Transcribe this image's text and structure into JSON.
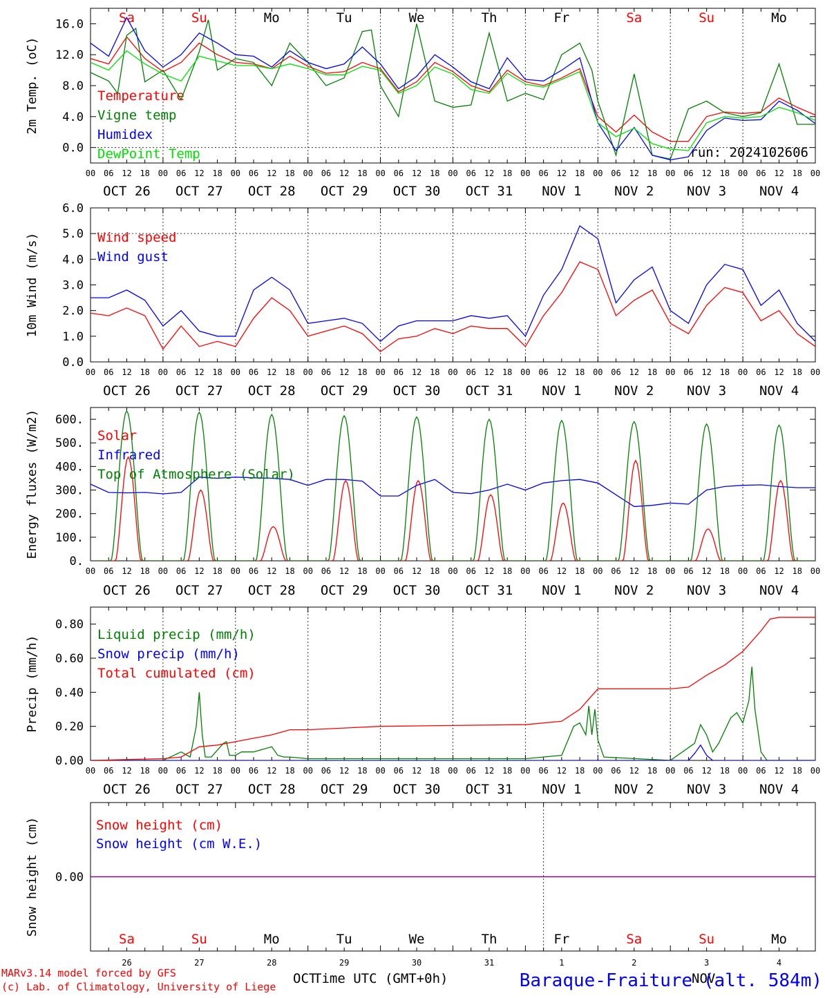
{
  "days": [
    {
      "dow": "Sa",
      "weekend": true,
      "date_label": "OCT 26",
      "dnum": "26"
    },
    {
      "dow": "Su",
      "weekend": true,
      "date_label": "OCT 27",
      "dnum": "27"
    },
    {
      "dow": "Mo",
      "weekend": false,
      "date_label": "OCT 28",
      "dnum": "28"
    },
    {
      "dow": "Tu",
      "weekend": false,
      "date_label": "OCT 29",
      "dnum": "29"
    },
    {
      "dow": "We",
      "weekend": false,
      "date_label": "OCT 30",
      "dnum": "30"
    },
    {
      "dow": "Th",
      "weekend": false,
      "date_label": "OCT 31",
      "dnum": "31"
    },
    {
      "dow": "Fr",
      "weekend": false,
      "date_label": "NOV  1",
      "dnum": "1"
    },
    {
      "dow": "Sa",
      "weekend": true,
      "date_label": "NOV  2",
      "dnum": "2"
    },
    {
      "dow": "Su",
      "weekend": true,
      "date_label": "NOV  3",
      "dnum": "3"
    },
    {
      "dow": "Mo",
      "weekend": false,
      "date_label": "NOV  4",
      "dnum": "4"
    }
  ],
  "hour_ticks": [
    "00",
    "06",
    "12",
    "18"
  ],
  "colors": {
    "red": "#ff0000",
    "green": "#008000",
    "blue": "#0000ff",
    "light_green": "#00e000",
    "purple": "#800080",
    "axis": "#000000"
  },
  "footer": {
    "credit_line1": "MARv3.14 model forced by GFS",
    "credit_line2": "(c) Lab. of Climatology, University of Liege",
    "month_left": "OCT",
    "month_right": "NOV",
    "x_axis_title": "Time UTC (GMT+0h)",
    "station": "Baraque-Fraiture (alt. 584m)"
  },
  "chart_data": [
    {
      "type": "line",
      "ylabel": "2m Temp. (oC)",
      "ylim": [
        -2,
        18
      ],
      "yticks": [
        "0.0",
        "4.0",
        "8.0",
        "12.0",
        "16.0"
      ],
      "run_label": "run: 2024102606",
      "series": [
        {
          "name": "Temperature",
          "color": "red",
          "x": [
            0,
            6,
            12,
            18,
            24,
            30,
            36,
            42,
            48,
            54,
            60,
            66,
            72,
            78,
            84,
            90,
            96,
            102,
            108,
            114,
            120,
            126,
            132,
            138,
            144,
            150,
            156,
            162,
            168,
            174,
            180,
            186,
            192,
            198,
            204,
            210,
            216,
            222,
            228,
            234,
            240
          ],
          "values": [
            11.5,
            10.8,
            14.3,
            11.5,
            9.8,
            11,
            13.5,
            12,
            11,
            10.8,
            10.2,
            11.8,
            10.5,
            9.6,
            9.8,
            11,
            10.2,
            7.2,
            8.5,
            11,
            9.8,
            8,
            7.2,
            10,
            8.5,
            8,
            9,
            10.2,
            4,
            2,
            4.2,
            2,
            0.8,
            0.8,
            4,
            4.6,
            4.4,
            4.6,
            6.4,
            5.2,
            4.2
          ]
        },
        {
          "name": "Vigne temp",
          "color": "green",
          "x": [
            0,
            6,
            9,
            12,
            15,
            18,
            24,
            30,
            36,
            39,
            42,
            48,
            54,
            60,
            66,
            72,
            78,
            84,
            90,
            93,
            96,
            102,
            108,
            114,
            120,
            126,
            132,
            138,
            144,
            150,
            156,
            162,
            166,
            168,
            174,
            180,
            186,
            192,
            198,
            204,
            210,
            216,
            222,
            228,
            234,
            240
          ],
          "values": [
            9.7,
            8.6,
            7,
            14.5,
            15.4,
            8.5,
            10,
            6.2,
            12.4,
            16.5,
            10,
            11.5,
            11,
            8,
            13.5,
            11,
            8,
            9,
            15,
            15.2,
            8,
            4,
            16,
            6,
            5.2,
            5.5,
            14.8,
            6,
            7,
            6.2,
            12,
            13.5,
            10,
            6,
            -1,
            9.5,
            -1,
            -1.5,
            5,
            6,
            4.5,
            4,
            4.5,
            10.8,
            3,
            3
          ]
        },
        {
          "name": "Humidex",
          "color": "blue",
          "x": [
            0,
            6,
            12,
            18,
            24,
            30,
            36,
            42,
            48,
            54,
            60,
            66,
            72,
            78,
            84,
            90,
            96,
            102,
            108,
            114,
            120,
            126,
            132,
            138,
            144,
            150,
            156,
            162,
            168,
            174,
            180,
            186,
            192,
            198,
            204,
            210,
            216,
            222,
            228,
            234,
            240
          ],
          "values": [
            13.5,
            11.8,
            16.8,
            12.5,
            10.4,
            12,
            14.8,
            13.5,
            12,
            11.8,
            10.4,
            12.5,
            11,
            10.2,
            10.8,
            13,
            10.8,
            7.6,
            9.2,
            12,
            10.4,
            8.5,
            7.6,
            11.6,
            8.8,
            8.6,
            10,
            11.6,
            3.2,
            -0.4,
            2.6,
            -1,
            -1.6,
            -1.2,
            2.2,
            3.8,
            3.5,
            3.6,
            6,
            4.8,
            3.1
          ]
        },
        {
          "name": "DewPoint Temp",
          "color": "light_green",
          "x": [
            0,
            6,
            12,
            18,
            24,
            30,
            36,
            42,
            48,
            54,
            60,
            66,
            72,
            78,
            84,
            90,
            96,
            102,
            108,
            114,
            120,
            126,
            132,
            138,
            144,
            150,
            156,
            162,
            168,
            174,
            180,
            186,
            192,
            198,
            204,
            210,
            216,
            222,
            228,
            234,
            240
          ],
          "values": [
            11,
            10,
            12.5,
            10.8,
            9.5,
            8.6,
            11.8,
            11.2,
            10.6,
            10.6,
            10.2,
            10.8,
            10.2,
            9.4,
            9.4,
            10.5,
            10,
            7,
            8,
            10.4,
            9.5,
            7.5,
            7,
            9.6,
            8.2,
            7.8,
            8.8,
            9.8,
            3.2,
            1.4,
            2.5,
            0.5,
            -0.2,
            -0.4,
            3.2,
            4,
            3.8,
            4,
            5.2,
            4.5,
            3.5
          ]
        }
      ]
    },
    {
      "type": "line",
      "ylabel": "10m Wind (m/s)",
      "ylim": [
        0,
        6
      ],
      "yticks": [
        "0.0",
        "1.0",
        "2.0",
        "3.0",
        "4.0",
        "5.0",
        "6.0"
      ],
      "dashed_line": 5,
      "series": [
        {
          "name": "Wind speed",
          "color": "red",
          "x": [
            0,
            6,
            12,
            18,
            24,
            30,
            36,
            42,
            48,
            54,
            60,
            66,
            72,
            78,
            84,
            90,
            96,
            102,
            108,
            114,
            120,
            126,
            132,
            138,
            144,
            150,
            156,
            162,
            168,
            174,
            180,
            186,
            192,
            198,
            204,
            210,
            216,
            222,
            228,
            234,
            240
          ],
          "values": [
            1.9,
            1.8,
            2.1,
            1.8,
            0.5,
            1.4,
            0.6,
            0.8,
            0.6,
            1.7,
            2.5,
            2,
            1,
            1.2,
            1.4,
            1.1,
            0.4,
            0.9,
            1,
            1.3,
            1.1,
            1.4,
            1.3,
            1.3,
            0.6,
            1.8,
            2.7,
            3.9,
            3.6,
            1.8,
            2.4,
            2.8,
            1.5,
            1.1,
            2.2,
            2.9,
            2.7,
            1.6,
            2,
            1.1,
            0.6
          ]
        },
        {
          "name": "Wind gust",
          "color": "blue",
          "x": [
            0,
            6,
            12,
            18,
            24,
            30,
            36,
            42,
            48,
            54,
            60,
            66,
            72,
            78,
            84,
            90,
            96,
            102,
            108,
            114,
            120,
            126,
            132,
            138,
            144,
            150,
            156,
            162,
            168,
            174,
            180,
            186,
            192,
            198,
            204,
            210,
            216,
            222,
            228,
            234,
            240
          ],
          "values": [
            2.5,
            2.5,
            2.8,
            2.4,
            1.4,
            2,
            1.2,
            1,
            1,
            2.8,
            3.3,
            2.8,
            1.5,
            1.6,
            1.7,
            1.5,
            0.8,
            1.4,
            1.6,
            1.6,
            1.6,
            1.8,
            1.7,
            1.8,
            1,
            2.6,
            3.6,
            5.3,
            4.8,
            2.3,
            3.2,
            3.7,
            2,
            1.5,
            3,
            3.8,
            3.6,
            2.2,
            2.8,
            1.5,
            0.8
          ]
        }
      ]
    },
    {
      "type": "line",
      "ylabel": "Energy fluxes (W/m2)",
      "ylim": [
        0,
        650
      ],
      "yticks": [
        "0.",
        "100.",
        "200.",
        "300.",
        "400.",
        "500.",
        "600."
      ],
      "series": [
        {
          "name": "Solar",
          "color": "red",
          "day_peaks": [
            440,
            300,
            145,
            340,
            340,
            280,
            245,
            425,
            135,
            340
          ]
        },
        {
          "name": "Infrared",
          "color": "blue",
          "x": [
            0,
            6,
            12,
            18,
            24,
            30,
            36,
            42,
            48,
            54,
            60,
            66,
            72,
            78,
            84,
            90,
            96,
            102,
            108,
            114,
            120,
            126,
            132,
            138,
            144,
            150,
            156,
            162,
            168,
            174,
            180,
            186,
            192,
            198,
            204,
            210,
            216,
            222,
            228,
            234,
            240
          ],
          "values": [
            325,
            290,
            288,
            290,
            284,
            290,
            355,
            350,
            355,
            352,
            350,
            345,
            320,
            345,
            345,
            338,
            275,
            275,
            320,
            345,
            290,
            285,
            300,
            325,
            300,
            330,
            340,
            345,
            330,
            280,
            230,
            235,
            245,
            240,
            300,
            315,
            320,
            322,
            315,
            310,
            310
          ]
        },
        {
          "name": "Top of Atmosphere (Solar)",
          "color": "green",
          "day_peaks": [
            635,
            630,
            620,
            615,
            610,
            600,
            595,
            590,
            580,
            575
          ]
        }
      ]
    },
    {
      "type": "line",
      "ylabel": "Precip (mm/h)",
      "ylim": [
        0,
        0.9
      ],
      "yticks": [
        "0.00",
        "0.20",
        "0.40",
        "0.60",
        "0.80"
      ],
      "series": [
        {
          "name": "Liquid precip (mm/h)",
          "color": "green",
          "x": [
            0,
            24,
            30,
            33,
            35,
            36,
            37,
            38,
            40,
            44,
            45,
            46,
            48,
            50,
            54,
            60,
            62,
            64,
            66,
            72,
            84,
            96,
            120,
            144,
            156,
            160,
            162,
            164,
            165,
            166,
            167,
            168,
            170,
            192,
            200,
            202,
            204,
            206,
            208,
            212,
            214,
            216,
            218,
            219,
            220,
            222,
            224,
            240
          ],
          "values": [
            0,
            0,
            0.05,
            0.02,
            0.2,
            0.4,
            0.15,
            0.02,
            0.02,
            0.1,
            0.11,
            0.03,
            0.03,
            0.05,
            0.05,
            0.08,
            0.03,
            0.02,
            0.02,
            0.01,
            0.01,
            0.01,
            0.01,
            0.01,
            0.03,
            0.2,
            0.22,
            0.15,
            0.32,
            0.15,
            0.3,
            0.12,
            0.02,
            0,
            0.1,
            0.21,
            0.15,
            0.05,
            0.1,
            0.25,
            0.28,
            0.22,
            0.35,
            0.55,
            0.3,
            0.05,
            0,
            0
          ]
        },
        {
          "name": "Snow precip (mm/h)",
          "color": "blue",
          "x": [
            0,
            198,
            200,
            202,
            204,
            206,
            240
          ],
          "values": [
            0,
            0,
            0.04,
            0.09,
            0.03,
            0,
            0
          ]
        },
        {
          "name": "Total cumulated (cm)",
          "color": "red",
          "x": [
            0,
            24,
            30,
            36,
            42,
            48,
            54,
            60,
            66,
            72,
            84,
            96,
            120,
            144,
            156,
            162,
            165,
            168,
            192,
            198,
            204,
            210,
            216,
            222,
            225,
            228,
            240
          ],
          "values": [
            0,
            0.01,
            0.02,
            0.08,
            0.09,
            0.11,
            0.13,
            0.15,
            0.18,
            0.18,
            0.19,
            0.2,
            0.205,
            0.21,
            0.23,
            0.3,
            0.36,
            0.42,
            0.42,
            0.43,
            0.5,
            0.56,
            0.64,
            0.76,
            0.83,
            0.84,
            0.84
          ]
        }
      ]
    },
    {
      "type": "line",
      "ylabel": "Snow height (cm)",
      "ylim": [
        -1,
        1
      ],
      "yticks": [
        "0.00"
      ],
      "series": [
        {
          "name": "Snow height (cm)",
          "color": "red",
          "x": [
            0,
            240
          ],
          "values": [
            0,
            0
          ]
        },
        {
          "name": "Snow height (cm W.E.)",
          "color": "blue",
          "x": [
            0,
            240
          ],
          "values": [
            0,
            0
          ]
        }
      ]
    }
  ]
}
